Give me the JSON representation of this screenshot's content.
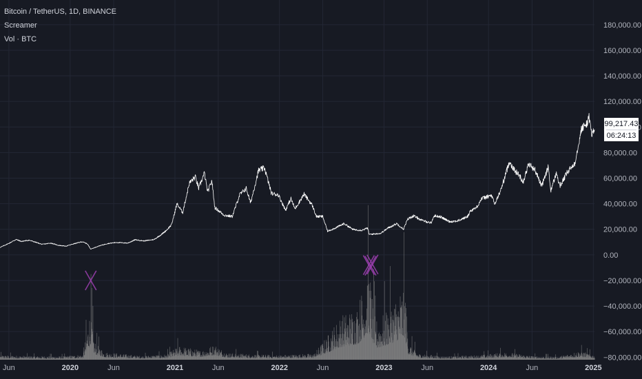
{
  "header": {
    "symbol_line": "Bitcoin / TetherUS, 1D, BINANCE",
    "indicator_1": "Screamer",
    "indicator_2": "Vol · BTC"
  },
  "price_label": {
    "price": "99,217.43",
    "countdown": "06:24:13"
  },
  "colors": {
    "background": "#171a23",
    "grid": "#232734",
    "price_line": "#ffffff",
    "volume_bars": "#8a8a8a",
    "marker": "#9c3fb0",
    "axis_text": "#b2b5be"
  },
  "chart_data": {
    "type": "line",
    "title": "Bitcoin / TetherUS, 1D, BINANCE",
    "x_axis": {
      "tick_labels": [
        {
          "label": "Jun",
          "date": "2019-06-01",
          "year": false
        },
        {
          "label": "2020",
          "date": "2020-01-01",
          "year": true
        },
        {
          "label": "Jun",
          "date": "2020-06-01",
          "year": false
        },
        {
          "label": "2021",
          "date": "2021-01-01",
          "year": true
        },
        {
          "label": "Jun",
          "date": "2021-06-01",
          "year": false
        },
        {
          "label": "2022",
          "date": "2022-01-01",
          "year": true
        },
        {
          "label": "Jun",
          "date": "2022-06-01",
          "year": false
        },
        {
          "label": "2023",
          "date": "2023-01-01",
          "year": true
        },
        {
          "label": "Jun",
          "date": "2023-06-01",
          "year": false
        },
        {
          "label": "2024",
          "date": "2024-01-01",
          "year": true
        },
        {
          "label": "Jun",
          "date": "2024-06-01",
          "year": false
        },
        {
          "label": "2025",
          "date": "2025-01-01",
          "year": true
        }
      ],
      "range": [
        "2019-05-01",
        "2025-01-05"
      ]
    },
    "y_axis": {
      "tick_values": [
        180000,
        160000,
        140000,
        120000,
        100000,
        80000,
        60000,
        40000,
        20000,
        0,
        -20000,
        -40000,
        -60000,
        -80000
      ],
      "tick_labels": [
        "180,000.00",
        "160,000.00",
        "140,000.00",
        "120,000.00",
        "100,000.00",
        "80,000.00",
        "60,000.00",
        "40,000.00",
        "20,000.00",
        "0.00",
        "−20,000.00",
        "−40,000.00",
        "−60,000.00",
        "−80,000.00"
      ],
      "range": [
        -82000,
        195000
      ],
      "position": "right"
    },
    "grid": true,
    "series": [
      {
        "type": "line",
        "points": [
          [
            "2019-05-01",
            5800
          ],
          [
            "2019-06-01",
            9000
          ],
          [
            "2019-06-26",
            12000
          ],
          [
            "2019-07-15",
            10500
          ],
          [
            "2019-08-10",
            11500
          ],
          [
            "2019-09-01",
            10000
          ],
          [
            "2019-09-25",
            8200
          ],
          [
            "2019-10-26",
            9200
          ],
          [
            "2019-11-20",
            7500
          ],
          [
            "2019-12-17",
            6800
          ],
          [
            "2020-01-15",
            8700
          ],
          [
            "2020-02-12",
            10300
          ],
          [
            "2020-03-01",
            8600
          ],
          [
            "2020-03-13",
            4500
          ],
          [
            "2020-04-10",
            6900
          ],
          [
            "2020-05-10",
            8800
          ],
          [
            "2020-06-10",
            9700
          ],
          [
            "2020-07-20",
            9200
          ],
          [
            "2020-08-15",
            11800
          ],
          [
            "2020-09-15",
            10900
          ],
          [
            "2020-10-20",
            12000
          ],
          [
            "2020-11-15",
            16000
          ],
          [
            "2020-12-01",
            19000
          ],
          [
            "2020-12-20",
            23500
          ],
          [
            "2021-01-08",
            40000
          ],
          [
            "2021-01-28",
            33000
          ],
          [
            "2021-02-20",
            56000
          ],
          [
            "2021-03-13",
            61000
          ],
          [
            "2021-03-25",
            52000
          ],
          [
            "2021-04-14",
            64000
          ],
          [
            "2021-04-25",
            49000
          ],
          [
            "2021-05-10",
            58000
          ],
          [
            "2021-05-20",
            37000
          ],
          [
            "2021-06-22",
            31000
          ],
          [
            "2021-07-20",
            30000
          ],
          [
            "2021-08-15",
            47000
          ],
          [
            "2021-09-07",
            52000
          ],
          [
            "2021-09-22",
            40500
          ],
          [
            "2021-10-20",
            66000
          ],
          [
            "2021-11-10",
            68000
          ],
          [
            "2021-12-04",
            48000
          ],
          [
            "2021-12-28",
            47000
          ],
          [
            "2022-01-22",
            35000
          ],
          [
            "2022-02-10",
            44000
          ],
          [
            "2022-02-24",
            36000
          ],
          [
            "2022-03-28",
            47500
          ],
          [
            "2022-04-25",
            39000
          ],
          [
            "2022-05-10",
            30000
          ],
          [
            "2022-06-01",
            30000
          ],
          [
            "2022-06-18",
            18500
          ],
          [
            "2022-07-15",
            21000
          ],
          [
            "2022-08-15",
            24500
          ],
          [
            "2022-09-15",
            19800
          ],
          [
            "2022-10-15",
            19200
          ],
          [
            "2022-11-05",
            21000
          ],
          [
            "2022-11-10",
            16000
          ],
          [
            "2022-12-20",
            16800
          ],
          [
            "2023-01-15",
            21000
          ],
          [
            "2023-02-15",
            24500
          ],
          [
            "2023-03-10",
            20000
          ],
          [
            "2023-03-25",
            28000
          ],
          [
            "2023-04-14",
            30500
          ],
          [
            "2023-05-15",
            26800
          ],
          [
            "2023-06-15",
            25000
          ],
          [
            "2023-06-25",
            30500
          ],
          [
            "2023-07-15",
            30000
          ],
          [
            "2023-08-18",
            26000
          ],
          [
            "2023-09-15",
            26500
          ],
          [
            "2023-10-20",
            30000
          ],
          [
            "2023-10-30",
            34500
          ],
          [
            "2023-11-20",
            37000
          ],
          [
            "2023-12-08",
            44000
          ],
          [
            "2024-01-11",
            46500
          ],
          [
            "2024-01-23",
            39500
          ],
          [
            "2024-02-15",
            52000
          ],
          [
            "2024-03-14",
            73000
          ],
          [
            "2024-04-01",
            66000
          ],
          [
            "2024-04-15",
            63000
          ],
          [
            "2024-05-01",
            57000
          ],
          [
            "2024-05-20",
            71000
          ],
          [
            "2024-06-10",
            67000
          ],
          [
            "2024-07-05",
            54000
          ],
          [
            "2024-07-28",
            69000
          ],
          [
            "2024-08-05",
            50000
          ],
          [
            "2024-08-25",
            64000
          ],
          [
            "2024-09-06",
            53500
          ],
          [
            "2024-10-01",
            64000
          ],
          [
            "2024-10-29",
            72000
          ],
          [
            "2024-11-11",
            88000
          ],
          [
            "2024-11-22",
            99500
          ],
          [
            "2024-12-05",
            101000
          ],
          [
            "2024-12-17",
            107000
          ],
          [
            "2024-12-28",
            93500
          ],
          [
            "2025-01-05",
            99217
          ]
        ]
      }
    ],
    "volume": {
      "name": "Vol · BTC",
      "baseline": -82000,
      "pattern": [
        [
          "2019-05-01",
          3000
        ],
        [
          "2019-08-01",
          2500
        ],
        [
          "2019-12-01",
          2200
        ],
        [
          "2020-02-15",
          3500
        ],
        [
          "2020-03-12",
          35000
        ],
        [
          "2020-03-25",
          12000
        ],
        [
          "2020-05-01",
          5000
        ],
        [
          "2020-09-01",
          2500
        ],
        [
          "2020-12-01",
          3500
        ],
        [
          "2021-01-15",
          9000
        ],
        [
          "2021-04-01",
          6000
        ],
        [
          "2021-05-20",
          10000
        ],
        [
          "2021-07-01",
          4500
        ],
        [
          "2021-10-01",
          3500
        ],
        [
          "2022-01-01",
          3000
        ],
        [
          "2022-05-01",
          4000
        ],
        [
          "2022-06-15",
          15000
        ],
        [
          "2022-08-01",
          28000
        ],
        [
          "2022-10-01",
          35000
        ],
        [
          "2022-11-09",
          62000
        ],
        [
          "2022-12-01",
          25000
        ],
        [
          "2023-01-01",
          30000
        ],
        [
          "2023-03-15",
          50000
        ],
        [
          "2023-03-26",
          12000
        ],
        [
          "2023-05-01",
          4000
        ],
        [
          "2023-08-01",
          2200
        ],
        [
          "2023-12-01",
          3000
        ],
        [
          "2024-03-01",
          5000
        ],
        [
          "2024-06-01",
          2500
        ],
        [
          "2024-09-01",
          2000
        ],
        [
          "2024-11-15",
          6000
        ],
        [
          "2025-01-05",
          3000
        ]
      ]
    },
    "markers": [
      {
        "symbol": "X",
        "date": "2020-03-13",
        "value": -20000
      },
      {
        "symbol": "X",
        "date": "2022-11-09",
        "value": -8000
      },
      {
        "symbol": "X",
        "date": "2022-11-15",
        "value": -8500
      },
      {
        "symbol": "X",
        "date": "2022-11-22",
        "value": -7500
      }
    ]
  }
}
